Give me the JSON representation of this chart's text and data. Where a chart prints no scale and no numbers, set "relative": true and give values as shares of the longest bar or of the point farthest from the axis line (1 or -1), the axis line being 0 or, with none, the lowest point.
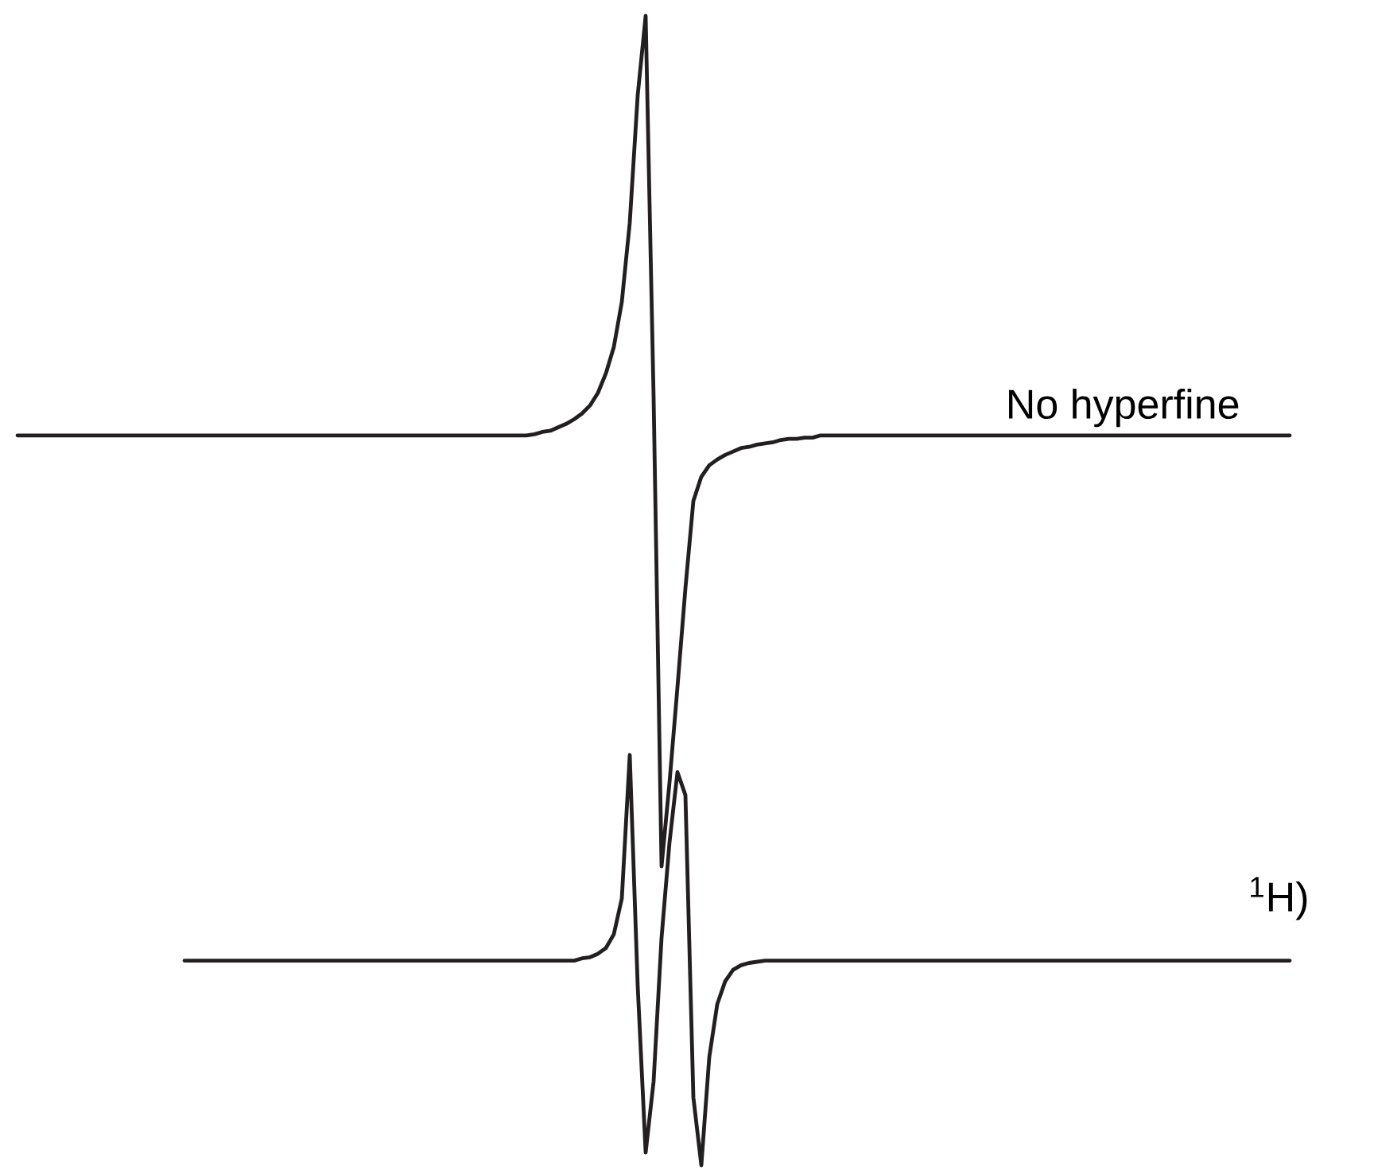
{
  "chart_data": {
    "type": "line",
    "relative": true,
    "categories": [
      null,
      null,
      null,
      null,
      null,
      null,
      null,
      null,
      null,
      null,
      null,
      null,
      null,
      null,
      null,
      null,
      null,
      null,
      null,
      null,
      null,
      null,
      null,
      null,
      null,
      null,
      null,
      null,
      null,
      null,
      null,
      null,
      null,
      null,
      null,
      null,
      null,
      null,
      null,
      null,
      null,
      null,
      null,
      null,
      null,
      null,
      null,
      null,
      null,
      null,
      null,
      null,
      null,
      null,
      null,
      null,
      null,
      null,
      null,
      null,
      null,
      null,
      null,
      null,
      null,
      null,
      null,
      null,
      null,
      null,
      null,
      null,
      null,
      null,
      null,
      null,
      null,
      null,
      null,
      null,
      null,
      null,
      null,
      null,
      null,
      null,
      null,
      null,
      null,
      null,
      null,
      null,
      null,
      null,
      null,
      null,
      null,
      null,
      null,
      null,
      null,
      null,
      null,
      null,
      null,
      null,
      null,
      null,
      null,
      null,
      null,
      null,
      null,
      null,
      null,
      null,
      null,
      null,
      null,
      null,
      null,
      null,
      null,
      null,
      null,
      null,
      null,
      null,
      null,
      null,
      null,
      null,
      null,
      null,
      null,
      null,
      null,
      null,
      null,
      null,
      null,
      null,
      null,
      null,
      null,
      null,
      null,
      null,
      null,
      null,
      null,
      null,
      null,
      null,
      null,
      null,
      null,
      null,
      null,
      null,
      null
    ],
    "series": [
      {
        "name": "No hyperfine",
        "color": "#231f20",
        "values": [
          0.635,
          0.635,
          0.635,
          0.635,
          0.635,
          0.635,
          0.635,
          0.635,
          0.635,
          0.635,
          0.635,
          0.635,
          0.635,
          0.635,
          0.635,
          0.635,
          0.635,
          0.635,
          0.635,
          0.635,
          0.635,
          0.635,
          0.635,
          0.635,
          0.635,
          0.635,
          0.635,
          0.635,
          0.635,
          0.635,
          0.635,
          0.635,
          0.635,
          0.635,
          0.635,
          0.635,
          0.635,
          0.635,
          0.635,
          0.635,
          0.635,
          0.635,
          0.635,
          0.635,
          0.635,
          0.635,
          0.635,
          0.635,
          0.635,
          0.635,
          0.635,
          0.635,
          0.635,
          0.635,
          0.635,
          0.635,
          0.635,
          0.635,
          0.635,
          0.635,
          0.635,
          0.635,
          0.635,
          0.635,
          0.635,
          0.636,
          0.638,
          0.639,
          0.642,
          0.645,
          0.649,
          0.654,
          0.661,
          0.672,
          0.689,
          0.712,
          0.751,
          0.82,
          0.931,
          1.0,
          0.668,
          0.26,
          0.333,
          0.416,
          0.502,
          0.578,
          0.599,
          0.609,
          0.614,
          0.618,
          0.621,
          0.624,
          0.625,
          0.627,
          0.628,
          0.629,
          0.631,
          0.632,
          0.632,
          0.633,
          0.633,
          0.635,
          0.635,
          0.635,
          0.635,
          0.635,
          0.635,
          0.635,
          0.635,
          0.635,
          0.635,
          0.635,
          0.635,
          0.635,
          0.635,
          0.635,
          0.635,
          0.635,
          0.635,
          0.635,
          0.635,
          0.635,
          0.635,
          0.635,
          0.635,
          0.635,
          0.635,
          0.635,
          0.635,
          0.635,
          0.635,
          0.635,
          0.635,
          0.635,
          0.635,
          0.635,
          0.635,
          0.635,
          0.635,
          0.635,
          0.635,
          0.635,
          0.635,
          0.635,
          0.635,
          0.635,
          0.635,
          0.635,
          0.635,
          0.635,
          0.635,
          0.635,
          0.635,
          0.635,
          0.635,
          0.635,
          0.635,
          0.635,
          0.635,
          0.635,
          0.635
        ]
      },
      {
        "name": "$^{1}$H)",
        "color": "#231f20",
        "values": [
          null,
          null,
          null,
          null,
          null,
          null,
          null,
          null,
          null,
          null,
          null,
          null,
          null,
          null,
          null,
          null,
          null,
          null,
          null,
          null,
          null,
          0.178,
          0.178,
          0.178,
          0.178,
          0.178,
          0.178,
          0.178,
          0.178,
          0.178,
          0.178,
          0.178,
          0.178,
          0.178,
          0.178,
          0.178,
          0.178,
          0.178,
          0.178,
          0.178,
          0.178,
          0.178,
          0.178,
          0.178,
          0.178,
          0.178,
          0.178,
          0.178,
          0.178,
          0.178,
          0.178,
          0.178,
          0.178,
          0.178,
          0.178,
          0.178,
          0.178,
          0.178,
          0.178,
          0.178,
          0.178,
          0.178,
          0.178,
          0.178,
          0.178,
          0.178,
          0.178,
          0.178,
          0.178,
          0.178,
          0.178,
          0.18,
          0.181,
          0.184,
          0.189,
          0.201,
          0.232,
          0.357,
          0.156,
          0.011,
          0.073,
          0.198,
          0.281,
          0.342,
          0.322,
          0.059,
          0.0,
          0.094,
          0.14,
          0.16,
          0.17,
          0.174,
          0.176,
          0.177,
          0.178,
          0.178,
          0.178,
          0.178,
          0.178,
          0.178,
          0.178,
          0.178,
          0.178,
          0.178,
          0.178,
          0.178,
          0.178,
          0.178,
          0.178,
          0.178,
          0.178,
          0.178,
          0.178,
          0.178,
          0.178,
          0.178,
          0.178,
          0.178,
          0.178,
          0.178,
          0.178,
          0.178,
          0.178,
          0.178,
          0.178,
          0.178,
          0.178,
          0.178,
          0.178,
          0.178,
          0.178,
          0.178,
          0.178,
          0.178,
          0.178,
          0.178,
          0.178,
          0.178,
          0.178,
          0.178,
          0.178,
          0.178,
          0.178,
          0.178,
          0.178,
          0.178,
          0.178,
          0.178,
          0.178,
          0.178,
          0.178,
          0.178,
          0.178,
          0.178,
          0.178,
          0.178,
          0.178,
          0.178,
          0.178,
          0.178,
          0.178
        ]
      }
    ]
  }
}
